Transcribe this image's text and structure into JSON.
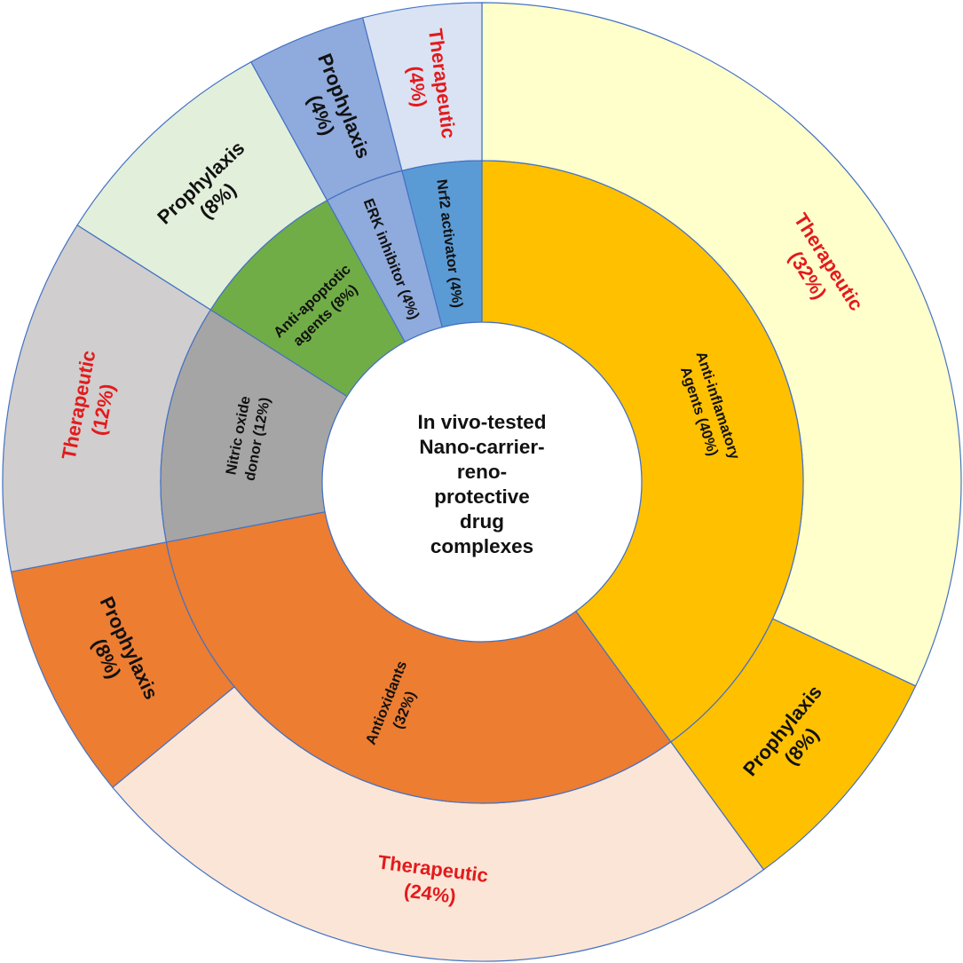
{
  "chart_data": {
    "type": "sunburst",
    "center_label": "In vivo-tested Nano-carrier-reno-protective drug complexes",
    "center_lines": [
      "In vivo-tested",
      "Nano-carrier-",
      "reno-",
      "protective",
      "drug",
      "complexes"
    ],
    "inner": [
      {
        "name": "Anti-inflamatory Agents",
        "value": 40,
        "label_lines": [
          "Anti-inflamatory",
          "Agents (40%)"
        ],
        "color": "#FFC000"
      },
      {
        "name": "Antioxidants",
        "value": 32,
        "label_lines": [
          "Antioxidants",
          "(32%)"
        ],
        "color": "#ED7D31"
      },
      {
        "name": "Nitric oxide donor",
        "value": 12,
        "label_lines": [
          "Nitric oxide",
          "donor (12%)"
        ],
        "color": "#A5A5A5"
      },
      {
        "name": "Anti-apoptotic agents",
        "value": 8,
        "label_lines": [
          "Anti-apoptotic",
          "agents (8%)"
        ],
        "color": "#70AD47"
      },
      {
        "name": "ERK inhibitor",
        "value": 4,
        "label_lines": [
          "ERK inhibitor (4%)"
        ],
        "color": "#8FAADC"
      },
      {
        "name": "Nrf2 activator",
        "value": 4,
        "label_lines": [
          "Nrf2 activator (4%)"
        ],
        "color": "#5B9BD5"
      }
    ],
    "outer": [
      {
        "name": "Therapeutic",
        "parent": "Anti-inflamatory Agents",
        "value": 32,
        "label_lines": [
          "Therapeutic",
          "(32%)"
        ],
        "color": "#FFFFCC",
        "text_color": "#E31A1C"
      },
      {
        "name": "Prophylaxis",
        "parent": "Anti-inflamatory Agents",
        "value": 8,
        "label_lines": [
          "Prophylaxis",
          "(8%)"
        ],
        "color": "#FFC000",
        "text_color": "#111111"
      },
      {
        "name": "Therapeutic",
        "parent": "Antioxidants",
        "value": 24,
        "label_lines": [
          "Therapeutic",
          "(24%)"
        ],
        "color": "#FBE5D6",
        "text_color": "#E31A1C"
      },
      {
        "name": "Prophylaxis",
        "parent": "Antioxidants",
        "value": 8,
        "label_lines": [
          "Prophylaxis",
          "(8%)"
        ],
        "color": "#ED7D31",
        "text_color": "#111111"
      },
      {
        "name": "Therapeutic",
        "parent": "Nitric oxide donor",
        "value": 12,
        "label_lines": [
          "Therapeutic",
          "(12%)"
        ],
        "color": "#D0CECE",
        "text_color": "#E31A1C"
      },
      {
        "name": "Prophylaxis",
        "parent": "Anti-apoptotic agents",
        "value": 8,
        "label_lines": [
          "Prophylaxis",
          "(8%)"
        ],
        "color": "#E2EFDA",
        "text_color": "#111111"
      },
      {
        "name": "Prophylaxis",
        "parent": "ERK inhibitor",
        "value": 4,
        "label_lines": [
          "Prophylaxis",
          "(4%)"
        ],
        "color": "#8FAADC",
        "text_color": "#111111"
      },
      {
        "name": "Therapeutic",
        "parent": "Nrf2 activator",
        "value": 4,
        "label_lines": [
          "Therapeutic",
          "(4%)"
        ],
        "color": "#DAE3F3",
        "text_color": "#E31A1C"
      }
    ],
    "stroke_color": "#4472C4"
  }
}
